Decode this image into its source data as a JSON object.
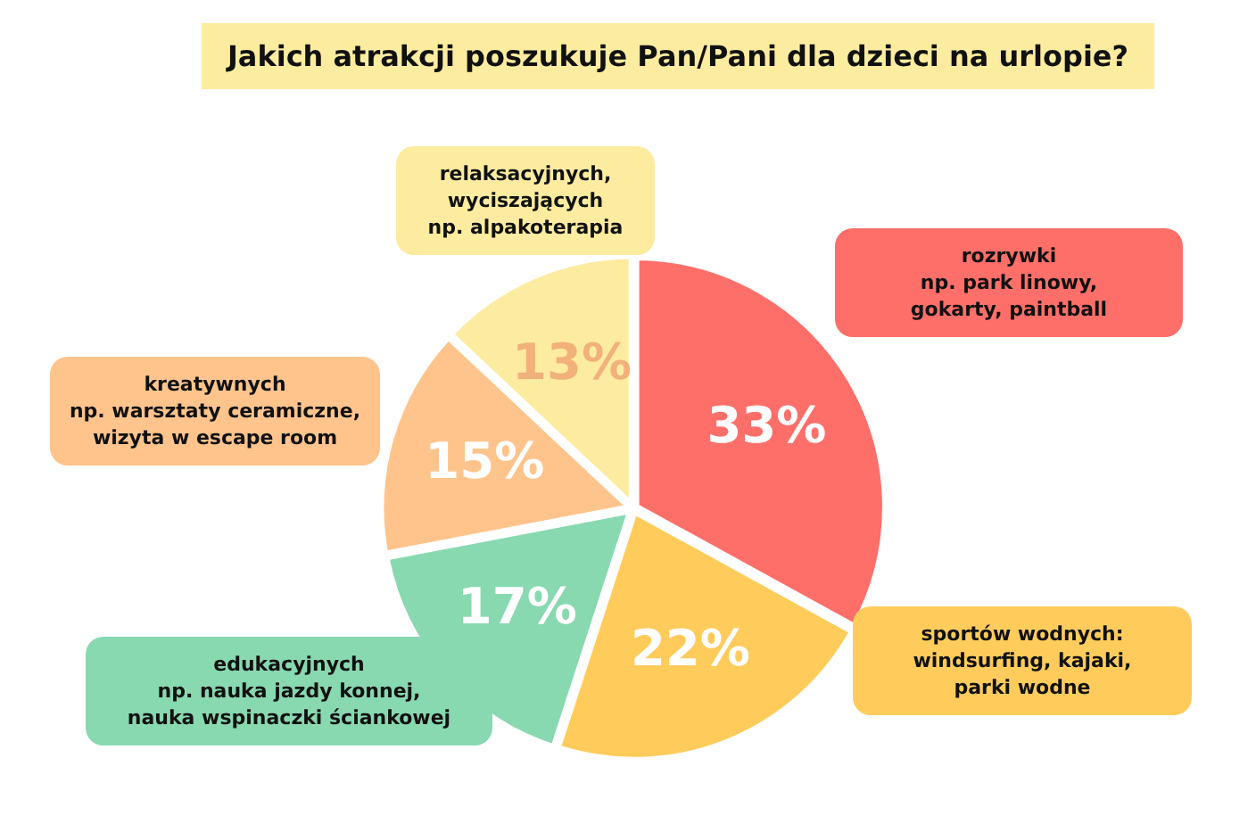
{
  "chart_data": {
    "type": "pie",
    "title": "Jakich atrakcji poszukuje Pan/Pani dla dzieci na urlopie?",
    "categories": [
      "rozrywki\nnp. park linowy,\ngokarty, paintball",
      "sportów wodnych:\nwindsurfing, kajaki,\nparki wodne",
      "edukacyjnych\nnp. nauka jazdy konnej,\nnauka wspinaczki ściankowej",
      "kreatywnych\nnp. warsztaty ceramiczne,\nwizyta w escape room",
      "relaksacyjnych,\nwyciszających\nnp. alpakoterapia"
    ],
    "values": [
      33,
      22,
      17,
      15,
      13
    ],
    "colors": [
      "#ff6f69",
      "#ffcc5c",
      "#88d8b0",
      "#ffc48c",
      "#fdeba0"
    ],
    "value_labels": [
      "33%",
      "22%",
      "17%",
      "15%",
      "13%"
    ],
    "legend": false
  }
}
